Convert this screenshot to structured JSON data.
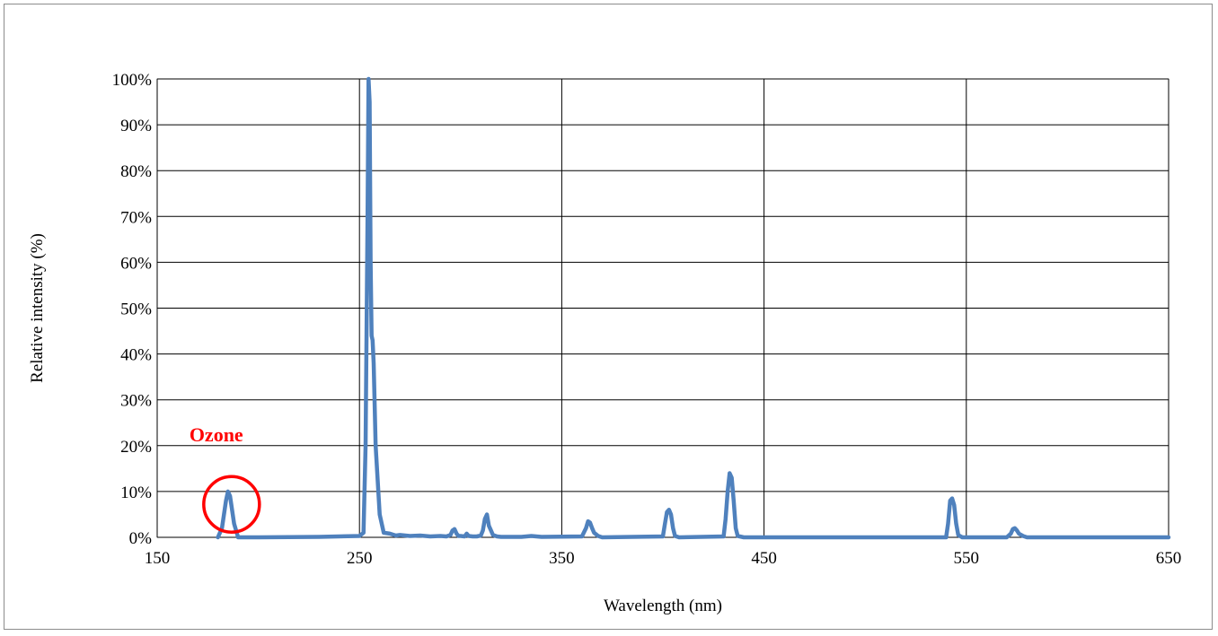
{
  "chart_data": {
    "type": "line",
    "xlabel": "Wavelength (nm)",
    "ylabel": "Relative intensity (%)",
    "xlim": [
      150,
      650
    ],
    "ylim": [
      0,
      100
    ],
    "x_ticks": [
      150,
      250,
      350,
      450,
      550,
      650
    ],
    "y_ticks": [
      0,
      10,
      20,
      30,
      40,
      50,
      60,
      70,
      80,
      90,
      100
    ],
    "x_tick_labels": [
      "150",
      "250",
      "350",
      "450",
      "550",
      "650"
    ],
    "y_tick_labels": [
      "0%",
      "10%",
      "20%",
      "30%",
      "40%",
      "50%",
      "60%",
      "70%",
      "80%",
      "90%",
      "100%"
    ],
    "grid": true,
    "line_color": "#4f81bd",
    "series": [
      {
        "x": [
          180,
          182,
          184,
          185,
          186,
          188,
          190,
          200,
          230,
          250,
          252,
          253,
          254,
          254.5,
          255,
          255.5,
          256,
          256.5,
          257,
          258,
          260,
          262,
          265,
          268,
          270,
          275,
          280,
          285,
          290,
          293,
          295,
          296,
          297,
          298,
          299,
          300,
          302,
          303,
          304,
          306,
          308,
          310,
          311,
          312,
          313,
          314,
          315,
          316,
          318,
          320,
          330,
          335,
          340,
          360,
          362,
          363,
          364,
          365,
          366,
          368,
          370,
          400,
          401,
          402,
          403,
          404,
          405,
          406,
          408,
          430,
          431,
          432,
          433,
          434,
          435,
          436,
          437,
          440,
          540,
          541,
          542,
          543,
          544,
          545,
          546,
          548,
          570,
          572,
          573,
          574,
          575,
          576,
          578,
          580,
          590,
          650
        ],
        "y": [
          0,
          2,
          8,
          10,
          9,
          3,
          0,
          0,
          0.1,
          0.3,
          1,
          20,
          70,
          100,
          95,
          60,
          44,
          43,
          38,
          20,
          5,
          1,
          0.8,
          0.4,
          0.5,
          0.3,
          0.4,
          0.2,
          0.3,
          0.2,
          0.5,
          1.5,
          1.8,
          0.8,
          0.3,
          0.3,
          0.2,
          0.8,
          0.3,
          0.2,
          0.2,
          0.4,
          1.5,
          4,
          5,
          2.5,
          1.5,
          0.5,
          0.2,
          0.1,
          0.1,
          0.3,
          0.1,
          0.2,
          2,
          3.5,
          3.2,
          2,
          1,
          0.3,
          0,
          0.2,
          3,
          5.5,
          6,
          5,
          2,
          0.3,
          0,
          0.2,
          4,
          10,
          14,
          13,
          8,
          2,
          0.3,
          0,
          0,
          3,
          8,
          8.5,
          7,
          3,
          0.5,
          0,
          0,
          0.8,
          1.8,
          2,
          1.5,
          0.8,
          0.3,
          0,
          0,
          0
        ]
      }
    ],
    "annotations": [
      {
        "text": "Ozone",
        "color": "#ff0000",
        "x": 185,
        "y": 7
      }
    ]
  }
}
